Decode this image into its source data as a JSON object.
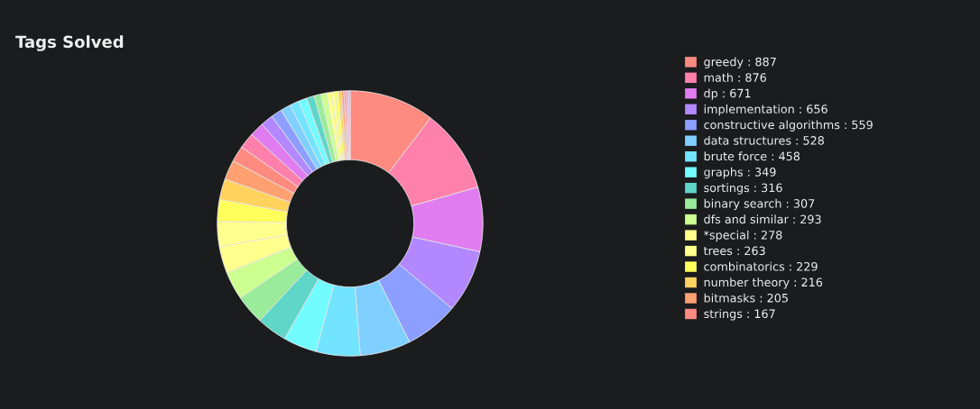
{
  "chart_data": {
    "type": "donut",
    "title": "Tags Solved",
    "legend": "right",
    "categories": [
      "greedy : 887",
      "math : 876",
      "dp : 671",
      "implementation : 656",
      "constructive algorithms : 559",
      "data structures : 528",
      "brute force : 458",
      "graphs : 349",
      "sortings : 316",
      "binary search : 307",
      "dfs and similar : 293",
      "*special : 278",
      "trees : 263",
      "combinatorics : 229",
      "number theory : 216",
      "bitmasks : 205",
      "strings : 167",
      null,
      null,
      null,
      null,
      null,
      null,
      null,
      null,
      null,
      null,
      null,
      null,
      null,
      null,
      null,
      null,
      null,
      null,
      null
    ],
    "values": [
      10.36,
      10.23,
      7.84,
      7.66,
      6.53,
      6.17,
      5.35,
      4.08,
      3.69,
      3.59,
      3.42,
      3.25,
      3.07,
      2.67,
      2.52,
      2.39,
      1.95,
      1.93,
      1.75,
      1.52,
      1.34,
      1.23,
      1.11,
      1.05,
      0.93,
      0.82,
      0.7,
      0.58,
      0.47,
      0.41,
      0.35,
      0.29,
      0.23,
      0.22,
      0.17,
      0.13
    ],
    "colors": [
      "#ff8a80",
      "#ff80ab",
      "#e07cf0",
      "#b388ff",
      "#8c9eff",
      "#80d0ff",
      "#72e4ff",
      "#72fcff",
      "#5fd6c8",
      "#9aeb9a",
      "#ccff90",
      "#ffff8d",
      "#ffff8d",
      "#ffff5c",
      "#ffd25e",
      "#ffa070",
      "#ff8a80",
      "#ff80ab",
      "#e07cf0",
      "#b388ff",
      "#8c9eff",
      "#80d0ff",
      "#72e4ff",
      "#72fcff",
      "#5fd6c8",
      "#9aeb9a",
      "#ccff90",
      "#ffff8d",
      "#ffff8d",
      "#ffff5c",
      "#ffd25e",
      "#ffa070",
      "#ff8a80",
      "#ff80ab",
      "#e07cf0",
      "#b388ff"
    ]
  }
}
